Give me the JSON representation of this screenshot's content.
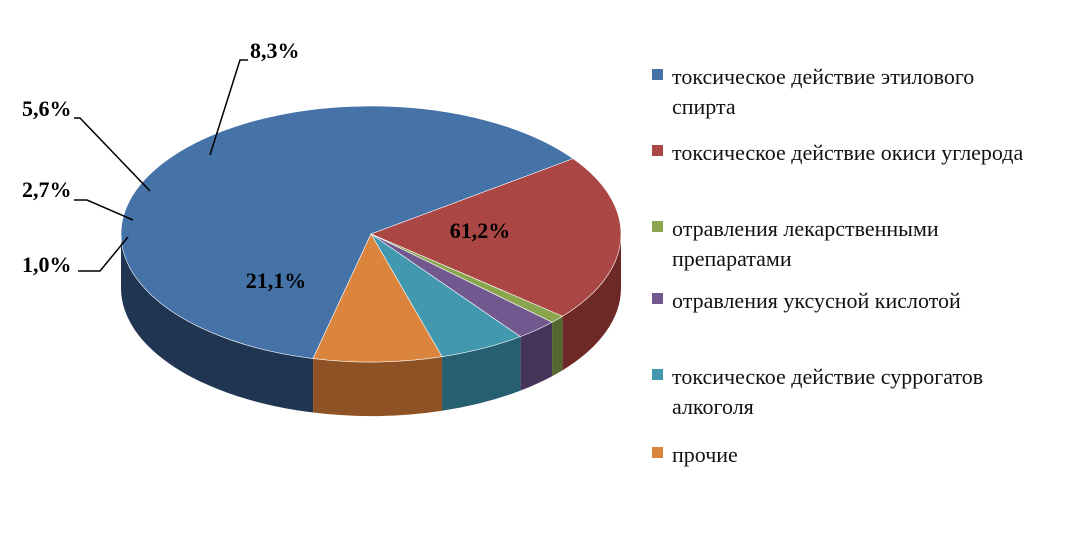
{
  "chart_data": {
    "type": "pie",
    "three_d": true,
    "legend_position": "right",
    "categories": [
      "токсическое действие этилового спирта",
      "токсическое действие окиси углерода",
      "отравления лекарственными препаратами",
      "отравления уксусной кислотой",
      "токсическое действие суррогатов алкоголя",
      "прочие"
    ],
    "values": [
      61.2,
      21.1,
      1.0,
      2.7,
      5.6,
      8.3
    ],
    "labels": [
      "61,2%",
      "21,1%",
      "1,0%",
      "2,7%",
      "5,6%",
      "8,3%"
    ],
    "colors": [
      "#4572a7",
      "#aa4643",
      "#89a54e",
      "#71588f",
      "#4198af",
      "#db843d"
    ],
    "side_colors": [
      "#1f3552",
      "#6e2825",
      "#55682f",
      "#443457",
      "#266070",
      "#8e5224"
    ]
  }
}
